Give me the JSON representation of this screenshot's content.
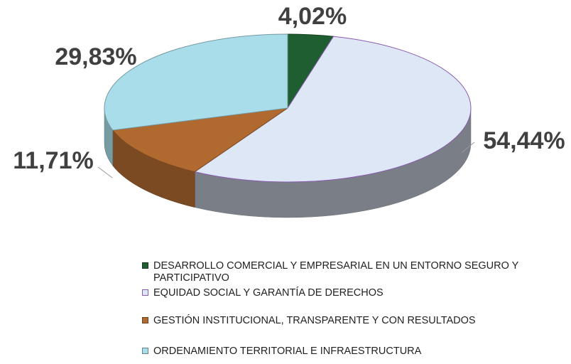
{
  "chart_data": {
    "type": "pie",
    "categories": [
      "DESARROLLO COMERCIAL Y EMPRESARIAL EN UN ENTORNO SEGURO Y PARTICIPATIVO",
      "EQUIDAD SOCIAL Y GARANTÍA DE DERECHOS",
      "GESTIÓN INSTITUCIONAL,  TRANSPARENTE Y CON RESULTADOS",
      "ORDENAMIENTO TERRITORIAL E INFRAESTRUCTURA"
    ],
    "values": [
      4.02,
      54.44,
      11.71,
      29.83
    ],
    "value_labels": [
      "4,02%",
      "54,44%",
      "11,71%",
      "29,83%"
    ],
    "colors": [
      "#1f5e30",
      "#dde7f6",
      "#b06a30",
      "#a9dde9"
    ],
    "legend": "bottom"
  }
}
